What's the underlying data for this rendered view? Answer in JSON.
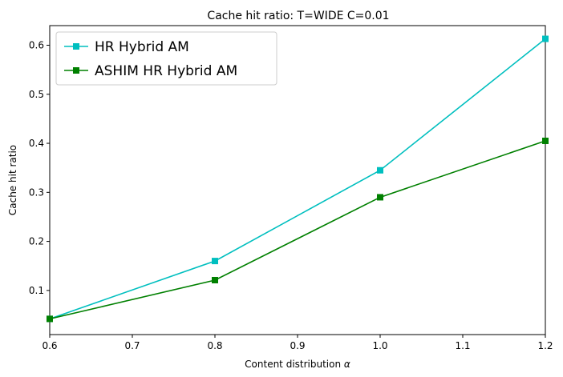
{
  "chart_data": {
    "type": "line",
    "title": "Cache hit ratio: T=WIDE C=0.01",
    "xlabel_text": "Content distribution ",
    "xlabel_symbol": "α",
    "ylabel": "Cache hit ratio",
    "xlim": [
      0.6,
      1.2
    ],
    "ylim": [
      0.01,
      0.64
    ],
    "x_ticks": [
      "0.6",
      "0.7",
      "0.8",
      "0.9",
      "1.0",
      "1.1",
      "1.2"
    ],
    "y_ticks": [
      "0.1",
      "0.2",
      "0.3",
      "0.4",
      "0.5",
      "0.6"
    ],
    "grid": false,
    "legend_position": "top-left",
    "x": [
      0.6,
      0.8,
      1.0,
      1.2
    ],
    "series": [
      {
        "name": "HR Hybrid AM",
        "color": "#00bfbf",
        "marker": "square",
        "values": [
          0.042,
          0.16,
          0.345,
          0.613
        ]
      },
      {
        "name": "ASHIM HR Hybrid AM",
        "color": "#008000",
        "marker": "square",
        "values": [
          0.042,
          0.121,
          0.29,
          0.405
        ]
      }
    ]
  }
}
